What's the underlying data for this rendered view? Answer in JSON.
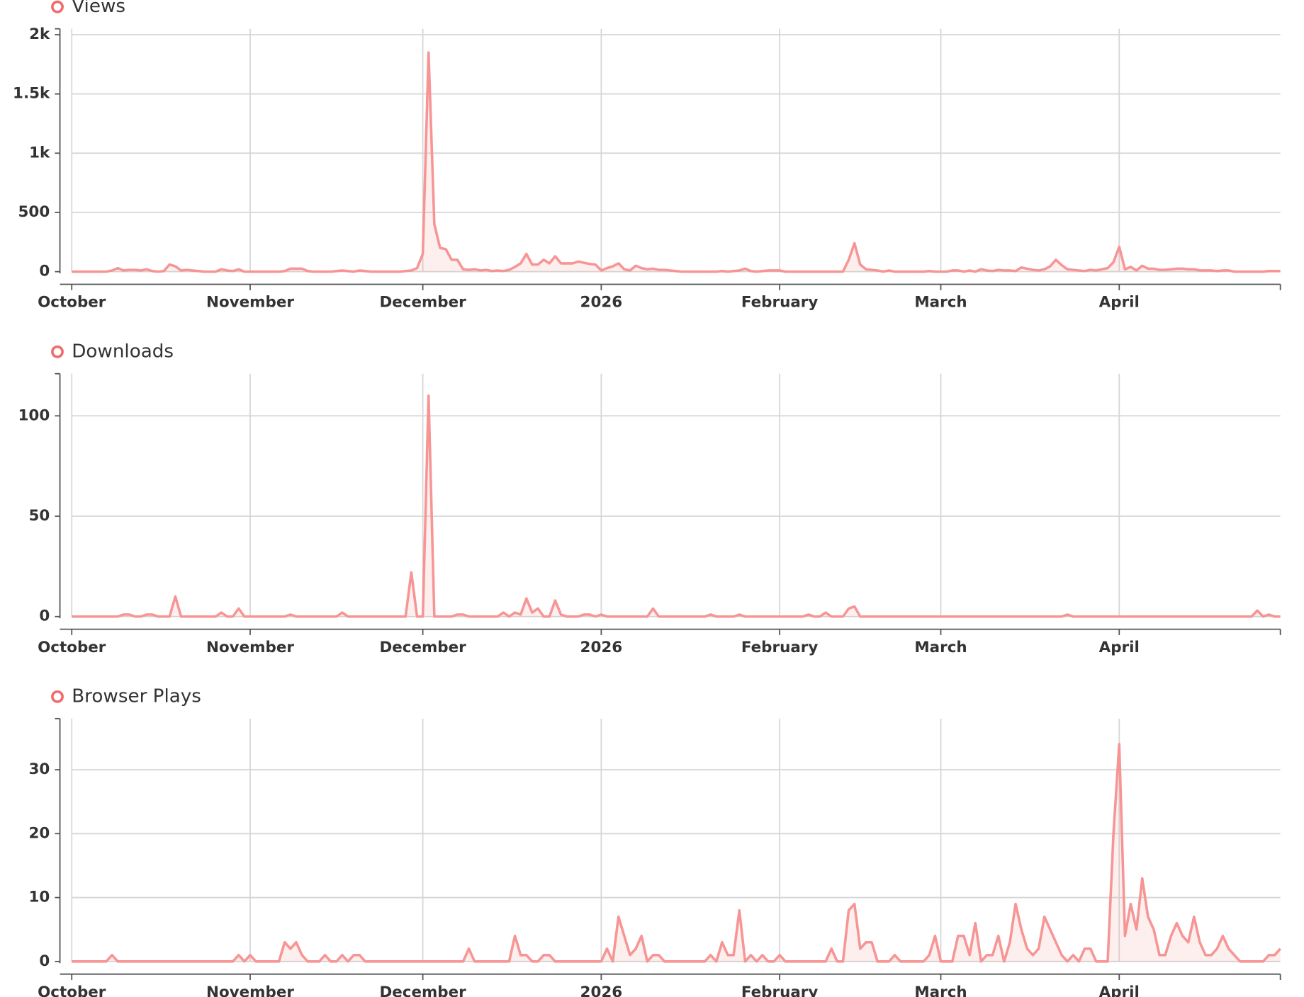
{
  "chart_data": {
    "type": "line",
    "x": [
      0,
      1,
      2,
      3,
      4,
      5,
      6,
      7,
      8,
      9,
      10,
      11,
      12,
      13,
      14,
      15,
      16,
      17,
      18,
      19,
      20,
      21,
      22,
      23,
      24,
      25,
      26,
      27,
      28,
      29,
      30,
      31,
      32,
      33,
      34,
      35,
      36,
      37,
      38,
      39,
      40,
      41,
      42,
      43,
      44,
      45,
      46,
      47,
      48,
      49,
      50,
      51,
      52,
      53,
      54,
      55,
      56,
      57,
      58,
      59,
      60,
      61,
      62,
      63,
      64,
      65,
      66,
      67,
      68,
      69,
      70,
      71,
      72,
      73,
      74,
      75,
      76,
      77,
      78,
      79,
      80,
      81,
      82,
      83,
      84,
      85,
      86,
      87,
      88,
      89,
      90,
      91,
      92,
      93,
      94,
      95,
      96,
      97,
      98,
      99,
      100,
      101,
      102,
      103,
      104,
      105,
      106,
      107,
      108,
      109,
      110,
      111,
      112,
      113,
      114,
      115,
      116,
      117,
      118,
      119,
      120,
      121,
      122,
      123,
      124,
      125,
      126,
      127,
      128,
      129,
      130,
      131,
      132,
      133,
      134,
      135,
      136,
      137,
      138,
      139,
      140,
      141,
      142,
      143,
      144,
      145,
      146,
      147,
      148,
      149,
      150,
      151,
      152,
      153,
      154,
      155,
      156,
      157,
      158,
      159,
      160,
      161,
      162,
      163,
      164,
      165,
      166,
      167,
      168,
      169,
      170,
      171,
      172,
      173,
      174,
      175,
      176,
      177,
      178,
      179,
      180,
      181,
      182,
      183,
      184,
      185,
      186,
      187,
      188,
      189,
      190,
      191,
      192,
      193,
      194,
      195,
      196,
      197,
      198,
      199,
      200,
      201,
      202,
      203,
      204,
      205,
      206,
      207,
      208,
      209,
      210
    ],
    "xlim": [
      0,
      210
    ],
    "xticks": [
      {
        "value": 0,
        "label": "October"
      },
      {
        "value": 31,
        "label": "November"
      },
      {
        "value": 61,
        "label": "December"
      },
      {
        "value": 92,
        "label": "2026"
      },
      {
        "value": 123,
        "label": "February"
      },
      {
        "value": 151,
        "label": "March"
      },
      {
        "value": 182,
        "label": "April"
      }
    ],
    "grid": true,
    "series": [
      {
        "name": "Views",
        "color": "#f79595",
        "ylim": [
          0,
          2050
        ],
        "yticks": [
          0,
          500,
          {
            "value": 1000,
            "label": "1k"
          },
          {
            "value": 1500,
            "label": "1.5k"
          },
          {
            "value": 2000,
            "label": "2k"
          }
        ],
        "values": [
          0,
          0,
          0,
          0,
          0,
          0,
          0,
          10,
          30,
          10,
          15,
          15,
          10,
          20,
          5,
          0,
          5,
          60,
          45,
          10,
          15,
          10,
          5,
          0,
          0,
          0,
          20,
          10,
          5,
          20,
          0,
          0,
          0,
          0,
          0,
          0,
          0,
          5,
          25,
          25,
          25,
          5,
          0,
          0,
          0,
          0,
          5,
          10,
          5,
          0,
          10,
          5,
          0,
          0,
          0,
          0,
          0,
          0,
          5,
          10,
          30,
          150,
          1850,
          400,
          200,
          190,
          100,
          100,
          20,
          15,
          20,
          10,
          15,
          5,
          10,
          5,
          15,
          40,
          70,
          150,
          60,
          60,
          100,
          70,
          130,
          70,
          70,
          70,
          85,
          75,
          65,
          60,
          10,
          30,
          45,
          70,
          20,
          10,
          50,
          30,
          20,
          25,
          15,
          15,
          10,
          5,
          0,
          0,
          0,
          0,
          0,
          0,
          0,
          5,
          0,
          5,
          10,
          25,
          5,
          0,
          5,
          10,
          10,
          10,
          0,
          0,
          0,
          0,
          0,
          0,
          0,
          0,
          0,
          0,
          0,
          100,
          240,
          60,
          20,
          15,
          10,
          0,
          10,
          0,
          0,
          0,
          0,
          0,
          0,
          5,
          0,
          0,
          0,
          10,
          10,
          0,
          10,
          0,
          20,
          10,
          5,
          15,
          10,
          10,
          5,
          35,
          25,
          15,
          10,
          20,
          45,
          100,
          55,
          20,
          15,
          10,
          5,
          15,
          10,
          20,
          30,
          80,
          210,
          20,
          40,
          10,
          50,
          25,
          25,
          15,
          15,
          20,
          25,
          25,
          20,
          20,
          10,
          10,
          10,
          5,
          10,
          10,
          0,
          0,
          0,
          0,
          0,
          0,
          5,
          5,
          5
        ]
      },
      {
        "name": "Downloads",
        "color": "#f79595",
        "ylim": [
          0,
          121
        ],
        "yticks": [
          0,
          50,
          100
        ],
        "values": [
          0,
          0,
          0,
          0,
          0,
          0,
          0,
          0,
          0,
          1,
          1,
          0,
          0,
          1,
          1,
          0,
          0,
          0,
          10,
          0,
          0,
          0,
          0,
          0,
          0,
          0,
          2,
          0,
          0,
          4,
          0,
          0,
          0,
          0,
          0,
          0,
          0,
          0,
          1,
          0,
          0,
          0,
          0,
          0,
          0,
          0,
          0,
          2,
          0,
          0,
          0,
          0,
          0,
          0,
          0,
          0,
          0,
          0,
          0,
          22,
          0,
          0,
          110,
          0,
          0,
          0,
          0,
          1,
          1,
          0,
          0,
          0,
          0,
          0,
          0,
          2,
          0,
          2,
          1,
          9,
          2,
          4,
          0,
          0,
          8,
          1,
          0,
          0,
          0,
          1,
          1,
          0,
          1,
          0,
          0,
          0,
          0,
          0,
          0,
          0,
          0,
          4,
          0,
          0,
          0,
          0,
          0,
          0,
          0,
          0,
          0,
          1,
          0,
          0,
          0,
          0,
          1,
          0,
          0,
          0,
          0,
          0,
          0,
          0,
          0,
          0,
          0,
          0,
          1,
          0,
          0,
          2,
          0,
          0,
          0,
          4,
          5,
          0,
          0,
          0,
          0,
          0,
          0,
          0,
          0,
          0,
          0,
          0,
          0,
          0,
          0,
          0,
          0,
          0,
          0,
          0,
          0,
          0,
          0,
          0,
          0,
          0,
          0,
          0,
          0,
          0,
          0,
          0,
          0,
          0,
          0,
          0,
          0,
          1,
          0,
          0,
          0,
          0,
          0,
          0,
          0,
          0,
          0,
          0,
          0,
          0,
          0,
          0,
          0,
          0,
          0,
          0,
          0,
          0,
          0,
          0,
          0,
          0,
          0,
          0,
          0,
          0,
          0,
          0,
          0,
          0,
          3,
          0,
          1,
          0,
          0
        ]
      },
      {
        "name": "Browser Plays",
        "color": "#f79595",
        "ylim": [
          0,
          38
        ],
        "yticks": [
          0,
          10,
          20,
          30
        ],
        "values": [
          0,
          0,
          0,
          0,
          0,
          0,
          0,
          1,
          0,
          0,
          0,
          0,
          0,
          0,
          0,
          0,
          0,
          0,
          0,
          0,
          0,
          0,
          0,
          0,
          0,
          0,
          0,
          0,
          0,
          1,
          0,
          1,
          0,
          0,
          0,
          0,
          0,
          3,
          2,
          3,
          1,
          0,
          0,
          0,
          1,
          0,
          0,
          1,
          0,
          1,
          1,
          0,
          0,
          0,
          0,
          0,
          0,
          0,
          0,
          0,
          0,
          0,
          0,
          0,
          0,
          0,
          0,
          0,
          0,
          2,
          0,
          0,
          0,
          0,
          0,
          0,
          0,
          4,
          1,
          1,
          0,
          0,
          1,
          1,
          0,
          0,
          0,
          0,
          0,
          0,
          0,
          0,
          0,
          2,
          0,
          7,
          4,
          1,
          2,
          4,
          0,
          1,
          1,
          0,
          0,
          0,
          0,
          0,
          0,
          0,
          0,
          1,
          0,
          3,
          1,
          1,
          8,
          0,
          1,
          0,
          1,
          0,
          0,
          1,
          0,
          0,
          0,
          0,
          0,
          0,
          0,
          0,
          2,
          0,
          0,
          8,
          9,
          2,
          3,
          3,
          0,
          0,
          0,
          1,
          0,
          0,
          0,
          0,
          0,
          1,
          4,
          0,
          0,
          0,
          4,
          4,
          1,
          6,
          0,
          1,
          1,
          4,
          0,
          3,
          9,
          5,
          2,
          1,
          2,
          7,
          5,
          3,
          1,
          0,
          1,
          0,
          2,
          2,
          0,
          0,
          0,
          20,
          34,
          4,
          9,
          5,
          13,
          7,
          5,
          1,
          1,
          4,
          6,
          4,
          3,
          7,
          3,
          1,
          1,
          2,
          4,
          2,
          1,
          0,
          0,
          0,
          0,
          0,
          1,
          1,
          2
        ]
      }
    ]
  }
}
